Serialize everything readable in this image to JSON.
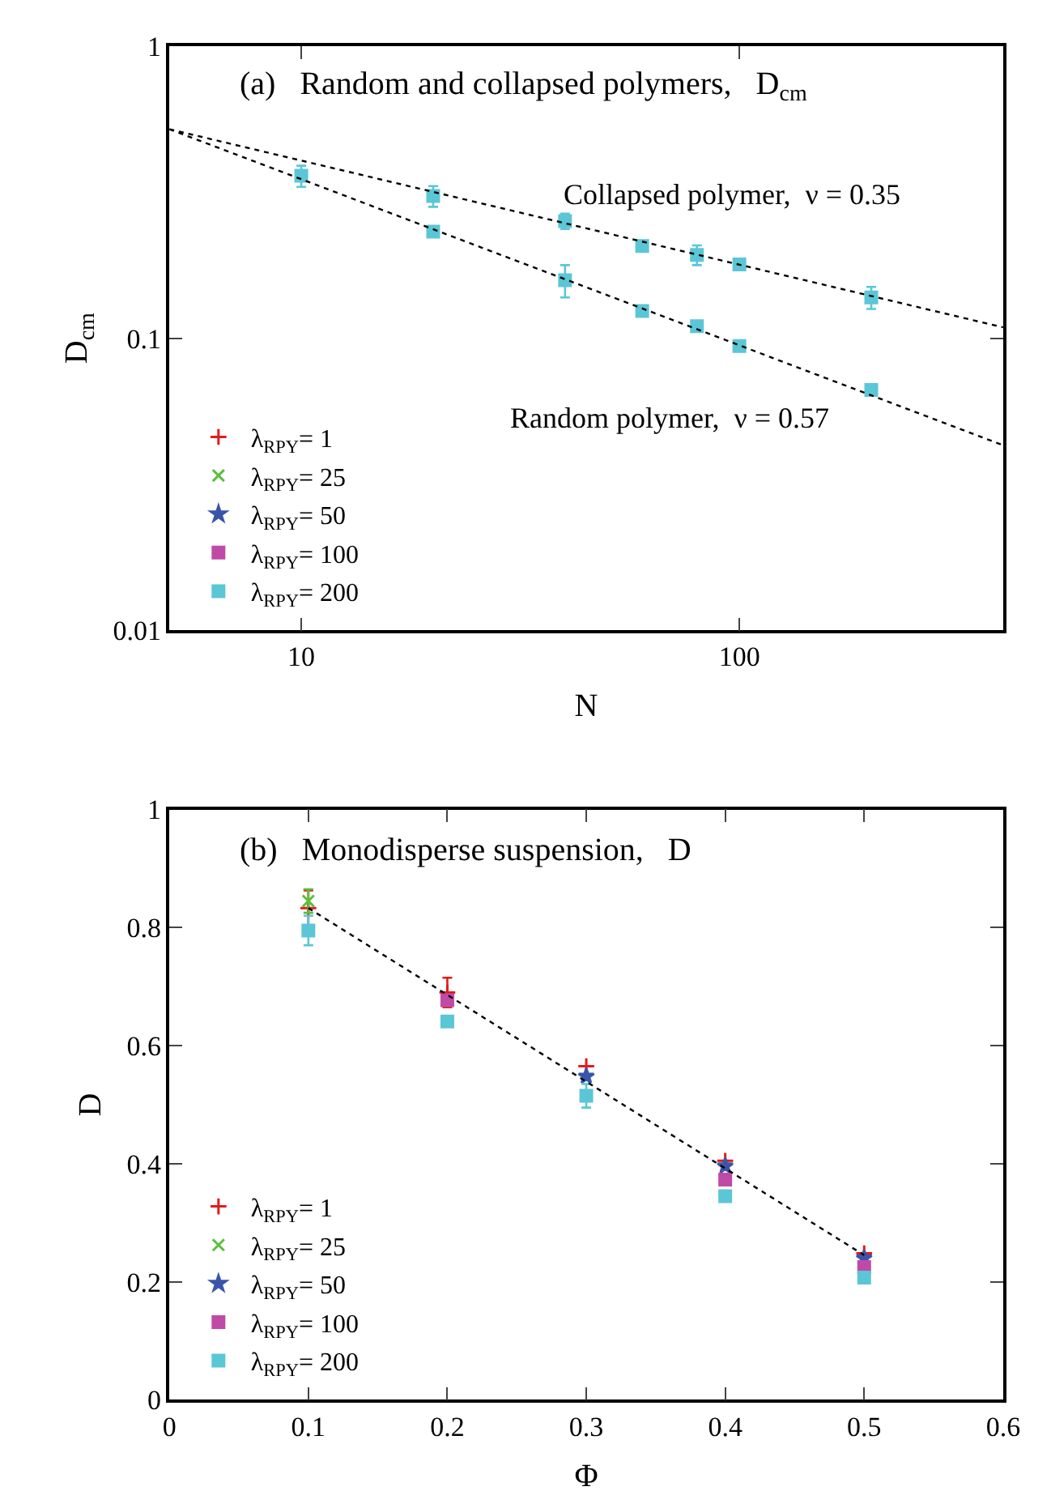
{
  "chart_data": [
    {
      "type": "scatter",
      "title": "(a)   Random and collapsed polymers,   D$_{cm}$",
      "xlabel": "N",
      "ylabel": "D$_{cm}$",
      "log": "xy",
      "xlim": [
        5,
        400
      ],
      "ylim": [
        0.01,
        1
      ],
      "xticks": [
        10,
        100
      ],
      "yticks": [
        0.01,
        0.1,
        1
      ],
      "legend": "bottom left",
      "annotations": [
        "Collapsed polymer,  ν = 0.35",
        "Random polymer,  ν = 0.57"
      ],
      "series": [
        {
          "name": "λ$_{RPY}$= 1",
          "color": "#e41a1c",
          "marker": "cross"
        },
        {
          "name": "λ$_{RPY}$= 25",
          "color": "#5bbf3c",
          "marker": "x"
        },
        {
          "name": "λ$_{RPY}$= 50",
          "color": "#3a55a8",
          "marker": "star"
        },
        {
          "name": "λ$_{RPY}$= 100",
          "color": "#c04aa8",
          "marker": "square"
        },
        {
          "name": "λ$_{RPY}$= 200",
          "color": "#5bc6d6",
          "marker": "square",
          "x": [
            20,
            40,
            60,
            80,
            100,
            200,
            10,
            20,
            40,
            60,
            80,
            100,
            200
          ],
          "values": [
            0.307,
            0.252,
            0.207,
            0.193,
            0.179,
            0.138,
            0.36,
            0.232,
            0.158,
            0.124,
            0.11,
            0.094,
            0.0665
          ],
          "errors": [
            0.025,
            0.015,
            null,
            0.015,
            null,
            0.012,
            0.03,
            null,
            0.02,
            null,
            null,
            null,
            null
          ]
        },
        {
          "type": "line",
          "color": "#000000",
          "line_style": "dotted",
          "x": [
            5,
            400
          ],
          "values": [
            0.52,
            0.109
          ]
        },
        {
          "type": "line",
          "color": "#000000",
          "line_style": "dotted",
          "x": [
            5,
            400
          ],
          "values": [
            0.52,
            0.043
          ]
        }
      ]
    },
    {
      "type": "scatter",
      "title": "(b)   Monodisperse suspension,   D",
      "xlabel": "Φ",
      "ylabel": "D",
      "xlim": [
        0,
        0.6
      ],
      "ylim": [
        0,
        1
      ],
      "xticks": [
        0,
        0.1,
        0.2,
        0.3,
        0.4,
        0.5,
        0.6
      ],
      "yticks": [
        0,
        0.2,
        0.4,
        0.6,
        0.8,
        1
      ],
      "legend": "bottom left",
      "series": [
        {
          "name": "λ$_{RPY}$= 1",
          "color": "#e41a1c",
          "marker": "cross",
          "x": [
            0.1,
            0.2,
            0.3,
            0.4,
            0.5
          ],
          "values": [
            0.833,
            0.69,
            0.565,
            0.405,
            0.248
          ],
          "errors": [
            0.03,
            0.025,
            null,
            null,
            null
          ]
        },
        {
          "name": "λ$_{RPY}$= 25",
          "color": "#5bbf3c",
          "marker": "x",
          "x": [
            0.1
          ],
          "values": [
            0.845
          ],
          "errors": [
            0.02
          ]
        },
        {
          "name": "λ$_{RPY}$= 50",
          "color": "#3a55a8",
          "marker": "star",
          "x": [
            0.3,
            0.4,
            0.5
          ],
          "values": [
            0.548,
            0.396,
            0.24
          ]
        },
        {
          "name": "λ$_{RPY}$= 100",
          "color": "#c04aa8",
          "marker": "square",
          "x": [
            0.2,
            0.4,
            0.5
          ],
          "values": [
            0.677,
            0.373,
            0.225
          ]
        },
        {
          "name": "λ$_{RPY}$= 200",
          "color": "#5bc6d6",
          "marker": "square",
          "x": [
            0.1,
            0.2,
            0.3,
            0.4,
            0.5
          ],
          "values": [
            0.795,
            0.641,
            0.515,
            0.345,
            0.207
          ],
          "errors": [
            0.025,
            null,
            0.02,
            null,
            null
          ]
        },
        {
          "type": "line",
          "color": "#000000",
          "line_style": "dotted",
          "x": [
            0.1,
            0.5
          ],
          "values": [
            0.833,
            0.245
          ]
        }
      ]
    }
  ]
}
